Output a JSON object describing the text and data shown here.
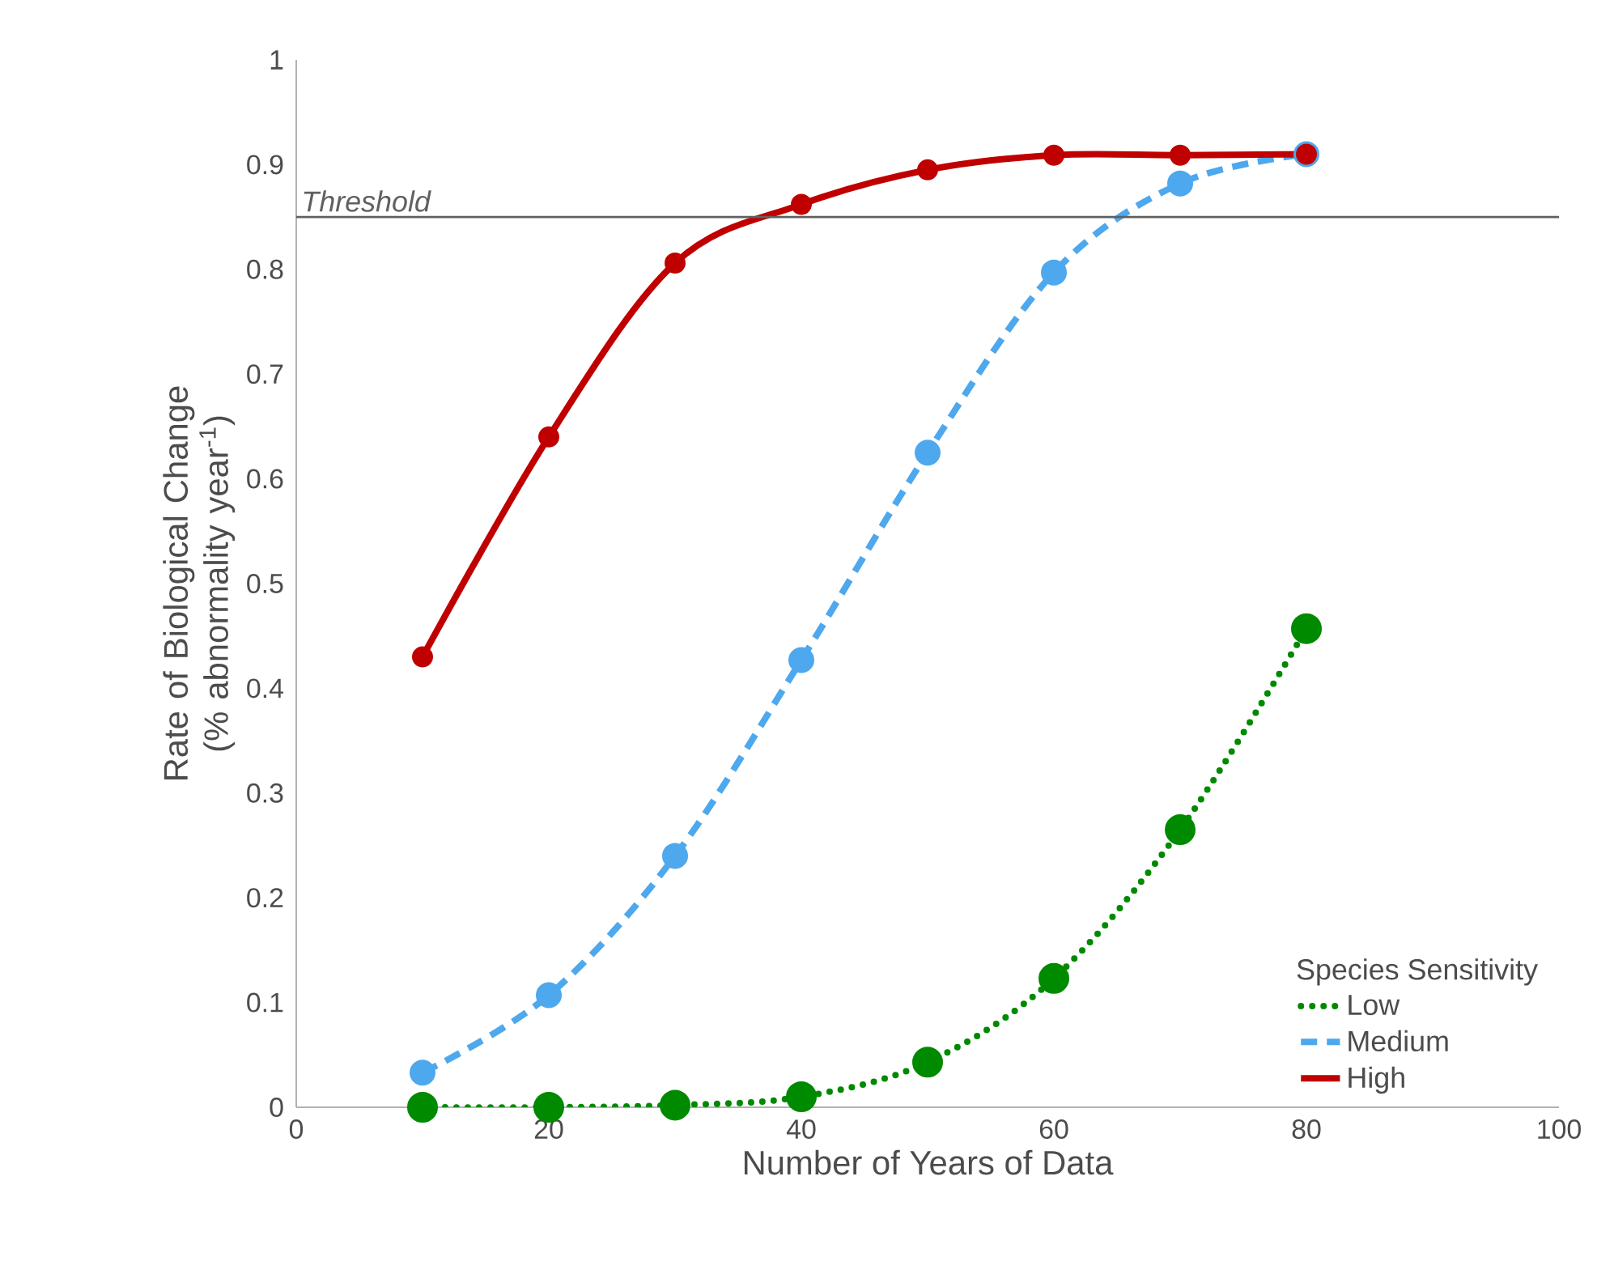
{
  "chart_data": {
    "type": "line",
    "xlabel": "Number of Years of Data",
    "ylabel": "Rate of Biological Change (% abnormality year$^{-1}$)",
    "legend_title": "Species Sensitivity",
    "legend": "bottom right",
    "marker": "circle",
    "grid": false,
    "x": [
      10,
      20,
      30,
      40,
      50,
      60,
      70,
      80
    ],
    "series": [
      {
        "name": "Low",
        "color": "#008a00",
        "line_style": "dotted",
        "values": [
          0,
          0,
          0.002,
          0.01,
          0.043,
          0.123,
          0.265,
          0.457
        ]
      },
      {
        "name": "Medium",
        "color": "#4da8ee",
        "line_style": "dashed",
        "values": [
          0.033,
          0.107,
          0.24,
          0.427,
          0.625,
          0.797,
          0.882,
          0.91
        ]
      },
      {
        "name": "High",
        "color": "#c00000",
        "line_style": "solid",
        "values": [
          0.43,
          0.64,
          0.806,
          0.862,
          0.895,
          0.909,
          0.909,
          0.91
        ]
      }
    ],
    "xlim": [
      0,
      100
    ],
    "xticks": [
      0,
      20,
      40,
      60,
      80,
      100
    ],
    "ylim": [
      0,
      1
    ],
    "yticks": [
      0,
      0.1,
      0.2,
      0.3,
      0.4,
      0.5,
      0.6,
      0.7,
      0.8,
      0.9,
      1
    ],
    "ref_lines": [
      {
        "axis": "y",
        "value": 0.85,
        "label": "Threshold",
        "color": "#606060"
      }
    ]
  }
}
